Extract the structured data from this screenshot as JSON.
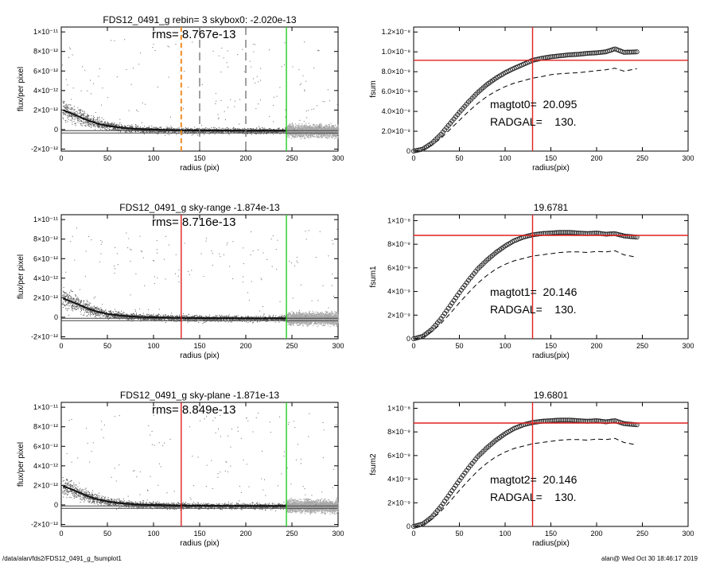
{
  "footer": {
    "path": "/data/alan/fds2/FDS12_0491_g_fsumplot1",
    "stamp": "alan@  Wed Oct 30 18:46:17 2019"
  },
  "chart_data": [
    {
      "type": "scatter",
      "title": "FDS12_0491_g rebin= 3    skybox0: -2.020e-13",
      "annotation": "rms= 8.767e-13",
      "xlabel": "radius (pix)",
      "ylabel": "flux/per pixel",
      "xlim": [
        0,
        300
      ],
      "ylim": [
        -2.2e-12,
        1.05e-11
      ],
      "xticks": [
        0,
        50,
        100,
        150,
        200,
        250,
        300
      ],
      "yticks": [
        {
          "v": -2e-12,
          "label": "-2×10⁻¹²"
        },
        {
          "v": 0,
          "label": "0"
        },
        {
          "v": 2e-12,
          "label": "2×10⁻¹²"
        },
        {
          "v": 4e-12,
          "label": "4×10⁻¹²"
        },
        {
          "v": 6e-12,
          "label": "6×10⁻¹²"
        },
        {
          "v": 8e-12,
          "label": "8×10⁻¹²"
        },
        {
          "v": 1e-11,
          "label": "1×10⁻¹¹"
        }
      ],
      "vlines": [
        {
          "x": 130,
          "color": "#f08a24",
          "style": "dashed"
        },
        {
          "x": 150,
          "color": "#777777",
          "style": "dashed"
        },
        {
          "x": 200,
          "color": "#777777",
          "style": "dashed"
        },
        {
          "x": 244,
          "color": "#22cc22",
          "style": "solid"
        }
      ],
      "hlines": [
        {
          "y": -1e-13,
          "color": "#444444"
        },
        {
          "y": -3.5e-13,
          "color": "#444444"
        }
      ],
      "profile": {
        "x": [
          2,
          10,
          20,
          30,
          40,
          50,
          60,
          70,
          80,
          90,
          100,
          110,
          120,
          130,
          150,
          175,
          200,
          225,
          244
        ],
        "y": [
          2e-12,
          1.7e-12,
          1.3e-12,
          9e-13,
          6e-13,
          4e-13,
          2.5e-13,
          1.5e-13,
          8e-14,
          3e-14,
          0,
          -3e-14,
          -5e-14,
          -6e-14,
          -8e-14,
          -9e-14,
          -1e-13,
          -1e-13,
          -1e-13
        ]
      }
    },
    {
      "type": "line",
      "title": "",
      "annotation_lines": [
        "magtot0=  20.095",
        "RADGAL=    130."
      ],
      "xlabel": "radius(pix)",
      "ylabel": "fsum",
      "xlim": [
        0,
        300
      ],
      "ylim": [
        0,
        1.25e-08
      ],
      "xticks": [
        0,
        50,
        100,
        150,
        200,
        250,
        300
      ],
      "yticks": [
        {
          "v": 0,
          "label": "0"
        },
        {
          "v": 2e-09,
          "label": "2.0×10⁻⁹"
        },
        {
          "v": 4e-09,
          "label": "4.0×10⁻⁹"
        },
        {
          "v": 6e-09,
          "label": "6.0×10⁻⁹"
        },
        {
          "v": 8e-09,
          "label": "8.0×10⁻⁹"
        },
        {
          "v": 1e-08,
          "label": "1.0×10⁻⁸"
        },
        {
          "v": 1.2e-08,
          "label": "1.2×10⁻⁸"
        }
      ],
      "vline": 130,
      "hline": 9.15e-09,
      "series": [
        {
          "style": "circles",
          "x": [
            0,
            10,
            20,
            30,
            40,
            50,
            60,
            70,
            80,
            90,
            100,
            110,
            120,
            130,
            140,
            150,
            160,
            170,
            180,
            190,
            200,
            210,
            220,
            230,
            244
          ],
          "y": [
            0,
            2e-10,
            8e-10,
            1.7e-09,
            2.8e-09,
            3.9e-09,
            4.95e-09,
            5.9e-09,
            6.7e-09,
            7.35e-09,
            7.9e-09,
            8.35e-09,
            8.75e-09,
            9.15e-09,
            9.35e-09,
            9.5e-09,
            9.6e-09,
            9.7e-09,
            9.75e-09,
            9.85e-09,
            9.9e-09,
            1e-08,
            1.03e-08,
            9.95e-09,
            1e-08
          ]
        },
        {
          "style": "dashed",
          "x": [
            0,
            10,
            20,
            30,
            40,
            50,
            60,
            70,
            80,
            90,
            100,
            110,
            120,
            130,
            140,
            150,
            160,
            170,
            180,
            190,
            200,
            210,
            220,
            230,
            244
          ],
          "y": [
            0,
            1.5e-10,
            6e-10,
            1.3e-09,
            2.2e-09,
            3.1e-09,
            4e-09,
            4.8e-09,
            5.5e-09,
            6.05e-09,
            6.5e-09,
            6.85e-09,
            7.1e-09,
            7.35e-09,
            7.5e-09,
            7.7e-09,
            7.8e-09,
            7.85e-09,
            7.9e-09,
            8e-09,
            8.1e-09,
            8.2e-09,
            8.35e-09,
            8.05e-09,
            8.3e-09
          ]
        }
      ]
    },
    {
      "type": "scatter",
      "title": "FDS12_0491_g sky-range -1.874e-13",
      "annotation": "rms= 8.716e-13",
      "xlabel": "radius (pix)",
      "ylabel": "flux/per pixel",
      "xlim": [
        0,
        300
      ],
      "ylim": [
        -2.2e-12,
        1.05e-11
      ],
      "xticks": [
        0,
        50,
        100,
        150,
        200,
        250,
        300
      ],
      "yticks": [
        {
          "v": -2e-12,
          "label": "-2×10⁻¹²"
        },
        {
          "v": 0,
          "label": "0"
        },
        {
          "v": 2e-12,
          "label": "2×10⁻¹²"
        },
        {
          "v": 4e-12,
          "label": "4×10⁻¹²"
        },
        {
          "v": 6e-12,
          "label": "6×10⁻¹²"
        },
        {
          "v": 8e-12,
          "label": "8×10⁻¹²"
        },
        {
          "v": 1e-11,
          "label": "1×10⁻¹¹"
        }
      ],
      "vlines": [
        {
          "x": 130,
          "color": "#e02020",
          "style": "solid"
        },
        {
          "x": 244,
          "color": "#22cc22",
          "style": "solid"
        }
      ],
      "hlines": [
        {
          "y": -1e-13,
          "color": "#444444"
        },
        {
          "y": -3.5e-13,
          "color": "#444444"
        }
      ],
      "profile": {
        "x": [
          2,
          10,
          20,
          30,
          40,
          50,
          60,
          70,
          80,
          90,
          100,
          110,
          120,
          130,
          150,
          175,
          200,
          225,
          244
        ],
        "y": [
          1.9e-12,
          1.65e-12,
          1.25e-12,
          8.5e-13,
          5.5e-13,
          3.5e-13,
          2.2e-13,
          1.3e-13,
          6e-14,
          2e-14,
          0,
          -3e-14,
          -5e-14,
          -6e-14,
          -8e-14,
          -9e-14,
          -1e-13,
          -1e-13,
          -1e-13
        ]
      }
    },
    {
      "type": "line",
      "title": "19.6781",
      "annotation_lines": [
        "magtot1=  20.146",
        "RADGAL=    130."
      ],
      "xlabel": "radius(pix)",
      "ylabel": "fsum1",
      "xlim": [
        0,
        300
      ],
      "ylim": [
        0,
        1.05e-08
      ],
      "xticks": [
        0,
        50,
        100,
        150,
        200,
        250,
        300
      ],
      "yticks": [
        {
          "v": 0,
          "label": "0"
        },
        {
          "v": 2e-09,
          "label": "2×10⁻⁹"
        },
        {
          "v": 4e-09,
          "label": "4×10⁻⁹"
        },
        {
          "v": 6e-09,
          "label": "6×10⁻⁹"
        },
        {
          "v": 8e-09,
          "label": "8×10⁻⁹"
        },
        {
          "v": 1e-08,
          "label": "1×10⁻⁸"
        }
      ],
      "vline": 130,
      "hline": 8.75e-09,
      "series": [
        {
          "style": "circles",
          "x": [
            0,
            10,
            20,
            30,
            40,
            50,
            60,
            70,
            80,
            90,
            100,
            110,
            120,
            130,
            140,
            150,
            160,
            170,
            180,
            190,
            200,
            210,
            220,
            230,
            244
          ],
          "y": [
            0,
            2e-10,
            8e-10,
            1.7e-09,
            2.8e-09,
            3.9e-09,
            4.95e-09,
            5.9e-09,
            6.65e-09,
            7.3e-09,
            7.85e-09,
            8.3e-09,
            8.6e-09,
            8.8e-09,
            8.9e-09,
            8.95e-09,
            9e-09,
            9e-09,
            8.95e-09,
            8.9e-09,
            8.95e-09,
            8.85e-09,
            8.9e-09,
            8.7e-09,
            8.6e-09
          ]
        },
        {
          "style": "dashed",
          "x": [
            0,
            10,
            20,
            30,
            40,
            50,
            60,
            70,
            80,
            90,
            100,
            110,
            120,
            130,
            140,
            150,
            160,
            170,
            180,
            190,
            200,
            210,
            220,
            230,
            244
          ],
          "y": [
            0,
            1.5e-10,
            6e-10,
            1.3e-09,
            2.15e-09,
            3.05e-09,
            3.9e-09,
            4.7e-09,
            5.35e-09,
            5.9e-09,
            6.3e-09,
            6.6e-09,
            6.8e-09,
            7e-09,
            7.1e-09,
            7.2e-09,
            7.3e-09,
            7.35e-09,
            7.35e-09,
            7.3e-09,
            7.4e-09,
            7.35e-09,
            7.45e-09,
            7.1e-09,
            6.9e-09
          ]
        }
      ]
    },
    {
      "type": "scatter",
      "title": "FDS12_0491_g sky-plane -1.871e-13",
      "annotation": "rms= 8.849e-13",
      "xlabel": "radius (pix)",
      "ylabel": "flux/per pixel",
      "xlim": [
        0,
        300
      ],
      "ylim": [
        -2.2e-12,
        1.05e-11
      ],
      "xticks": [
        0,
        50,
        100,
        150,
        200,
        250,
        300
      ],
      "yticks": [
        {
          "v": -2e-12,
          "label": "-2×10⁻¹²"
        },
        {
          "v": 0,
          "label": "0"
        },
        {
          "v": 2e-12,
          "label": "2×10⁻¹²"
        },
        {
          "v": 4e-12,
          "label": "4×10⁻¹²"
        },
        {
          "v": 6e-12,
          "label": "6×10⁻¹²"
        },
        {
          "v": 8e-12,
          "label": "8×10⁻¹²"
        },
        {
          "v": 1e-11,
          "label": "1×10⁻¹¹"
        }
      ],
      "vlines": [
        {
          "x": 130,
          "color": "#e02020",
          "style": "solid"
        },
        {
          "x": 244,
          "color": "#22cc22",
          "style": "solid"
        }
      ],
      "hlines": [
        {
          "y": -1e-13,
          "color": "#444444"
        },
        {
          "y": -3.5e-13,
          "color": "#444444"
        }
      ],
      "profile": {
        "x": [
          2,
          10,
          20,
          30,
          40,
          50,
          60,
          70,
          80,
          90,
          100,
          110,
          120,
          130,
          150,
          175,
          200,
          225,
          244
        ],
        "y": [
          1.9e-12,
          1.65e-12,
          1.25e-12,
          8.5e-13,
          5.5e-13,
          3.5e-13,
          2.2e-13,
          1.3e-13,
          6e-14,
          2e-14,
          0,
          -3e-14,
          -5e-14,
          -6e-14,
          -8e-14,
          -9e-14,
          -1e-13,
          -1e-13,
          -1e-13
        ]
      }
    },
    {
      "type": "line",
      "title": "19.6801",
      "annotation_lines": [
        "magtot2=  20.146",
        "RADGAL=    130."
      ],
      "xlabel": "radius(pix)",
      "ylabel": "fsum2",
      "xlim": [
        0,
        300
      ],
      "ylim": [
        0,
        1.05e-08
      ],
      "xticks": [
        0,
        50,
        100,
        150,
        200,
        250,
        300
      ],
      "yticks": [
        {
          "v": 0,
          "label": "0"
        },
        {
          "v": 2e-09,
          "label": "2×10⁻⁹"
        },
        {
          "v": 4e-09,
          "label": "4×10⁻⁹"
        },
        {
          "v": 6e-09,
          "label": "6×10⁻⁹"
        },
        {
          "v": 8e-09,
          "label": "8×10⁻⁹"
        },
        {
          "v": 1e-08,
          "label": "1×10⁻⁸"
        }
      ],
      "vline": 130,
      "hline": 8.75e-09,
      "series": [
        {
          "style": "circles",
          "x": [
            0,
            10,
            20,
            30,
            40,
            50,
            60,
            70,
            80,
            90,
            100,
            110,
            120,
            130,
            140,
            150,
            160,
            170,
            180,
            190,
            200,
            210,
            220,
            230,
            244
          ],
          "y": [
            0,
            2e-10,
            8e-10,
            1.7e-09,
            2.8e-09,
            3.9e-09,
            4.95e-09,
            5.9e-09,
            6.65e-09,
            7.3e-09,
            7.85e-09,
            8.3e-09,
            8.6e-09,
            8.8e-09,
            8.9e-09,
            8.95e-09,
            9e-09,
            9e-09,
            8.95e-09,
            8.9e-09,
            8.95e-09,
            8.85e-09,
            8.95e-09,
            8.7e-09,
            8.6e-09
          ]
        },
        {
          "style": "dashed",
          "x": [
            0,
            10,
            20,
            30,
            40,
            50,
            60,
            70,
            80,
            90,
            100,
            110,
            120,
            130,
            140,
            150,
            160,
            170,
            180,
            190,
            200,
            210,
            220,
            230,
            244
          ],
          "y": [
            0,
            1.5e-10,
            6e-10,
            1.3e-09,
            2.15e-09,
            3.05e-09,
            3.9e-09,
            4.7e-09,
            5.35e-09,
            5.9e-09,
            6.3e-09,
            6.6e-09,
            6.8e-09,
            7e-09,
            7.1e-09,
            7.2e-09,
            7.3e-09,
            7.35e-09,
            7.35e-09,
            7.3e-09,
            7.4e-09,
            7.35e-09,
            7.45e-09,
            7.1e-09,
            6.9e-09
          ]
        }
      ]
    }
  ]
}
